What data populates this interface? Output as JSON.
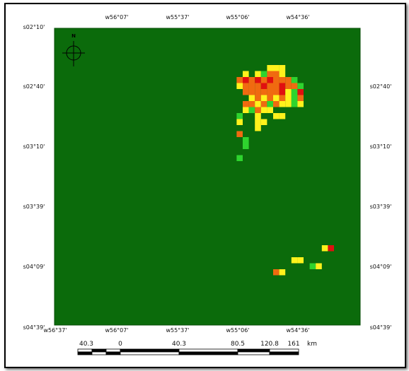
{
  "top_lon_labels": [
    "w56°07'",
    "w55°37'",
    "w55°06'",
    "w54°36'"
  ],
  "bottom_lon_labels": [
    "w56°37'",
    "w56°07'",
    "w55°37'",
    "w55°06'",
    "w54°36'"
  ],
  "left_lat_labels": [
    "s02°10'",
    "s02°40'",
    "s03°10'",
    "s03°39'",
    "s04°09'",
    "s04°39'"
  ],
  "right_lat_labels": [
    "s02°40'",
    "s03°10'",
    "s03°39'",
    "s04°09'",
    "s04°39'"
  ],
  "north_label": "N",
  "scale_bar": {
    "labels": [
      "40.3",
      "0",
      "40.3",
      "80.5",
      "120.8",
      "161"
    ],
    "unit": "km"
  },
  "colors": {
    "map_background": "#0b6b0b",
    "classes": {
      "orange": "#f06a10",
      "red": "#e01010",
      "yellow": "#fff21c",
      "green": "#2ed42e"
    }
  },
  "cells": [
    [
      "yellow",
      24,
      0
    ],
    [
      "yellow",
      25,
      0
    ],
    [
      "yellow",
      26,
      0
    ],
    [
      "yellow",
      20,
      1
    ],
    [
      "yellow",
      22,
      1
    ],
    [
      "green",
      23,
      1
    ],
    [
      "orange",
      24,
      1
    ],
    [
      "orange",
      25,
      1
    ],
    [
      "yellow",
      26,
      1
    ],
    [
      "orange",
      19,
      2
    ],
    [
      "red",
      20,
      2
    ],
    [
      "orange",
      21,
      2
    ],
    [
      "red",
      22,
      2
    ],
    [
      "orange",
      23,
      2
    ],
    [
      "red",
      24,
      2
    ],
    [
      "orange",
      25,
      2
    ],
    [
      "orange",
      26,
      2
    ],
    [
      "orange",
      27,
      2
    ],
    [
      "green",
      28,
      2
    ],
    [
      "yellow",
      19,
      3
    ],
    [
      "orange",
      20,
      3
    ],
    [
      "orange",
      21,
      3
    ],
    [
      "orange",
      22,
      3
    ],
    [
      "red",
      23,
      3
    ],
    [
      "orange",
      24,
      3
    ],
    [
      "orange",
      25,
      3
    ],
    [
      "red",
      26,
      3
    ],
    [
      "orange",
      27,
      3
    ],
    [
      "orange",
      28,
      3
    ],
    [
      "green",
      29,
      3
    ],
    [
      "orange",
      20,
      4
    ],
    [
      "orange",
      21,
      4
    ],
    [
      "orange",
      22,
      4
    ],
    [
      "orange",
      23,
      4
    ],
    [
      "orange",
      24,
      4
    ],
    [
      "orange",
      25,
      4
    ],
    [
      "red",
      26,
      4
    ],
    [
      "yellow",
      27,
      4
    ],
    [
      "green",
      28,
      4
    ],
    [
      "red",
      29,
      4
    ],
    [
      "yellow",
      21,
      5
    ],
    [
      "orange",
      22,
      5
    ],
    [
      "yellow",
      23,
      5
    ],
    [
      "orange",
      24,
      5
    ],
    [
      "yellow",
      25,
      5
    ],
    [
      "orange",
      26,
      5
    ],
    [
      "yellow",
      27,
      5
    ],
    [
      "green",
      28,
      5
    ],
    [
      "orange",
      29,
      5
    ],
    [
      "orange",
      20,
      6
    ],
    [
      "orange",
      21,
      6
    ],
    [
      "yellow",
      22,
      6
    ],
    [
      "orange",
      23,
      6
    ],
    [
      "green",
      24,
      6
    ],
    [
      "orange",
      25,
      6
    ],
    [
      "yellow",
      26,
      6
    ],
    [
      "yellow",
      27,
      6
    ],
    [
      "green",
      28,
      6
    ],
    [
      "yellow",
      29,
      6
    ],
    [
      "yellow",
      20,
      7
    ],
    [
      "green",
      21,
      7
    ],
    [
      "orange",
      22,
      7
    ],
    [
      "yellow",
      23,
      7
    ],
    [
      "yellow",
      24,
      7
    ],
    [
      "green",
      19,
      8
    ],
    [
      "yellow",
      22,
      8
    ],
    [
      "yellow",
      25,
      8
    ],
    [
      "yellow",
      26,
      8
    ],
    [
      "yellow",
      19,
      9
    ],
    [
      "yellow",
      22,
      9
    ],
    [
      "yellow",
      23,
      9
    ],
    [
      "yellow",
      22,
      10
    ],
    [
      "orange",
      19,
      11
    ],
    [
      "green",
      20,
      12
    ],
    [
      "green",
      20,
      13
    ],
    [
      "green",
      19,
      15
    ],
    [
      "yellow",
      33,
      30
    ],
    [
      "red",
      34,
      30
    ],
    [
      "yellow",
      28,
      32
    ],
    [
      "yellow",
      29,
      32
    ],
    [
      "green",
      31,
      33
    ],
    [
      "yellow",
      32,
      33
    ],
    [
      "orange",
      25,
      34
    ],
    [
      "yellow",
      26,
      34
    ]
  ]
}
